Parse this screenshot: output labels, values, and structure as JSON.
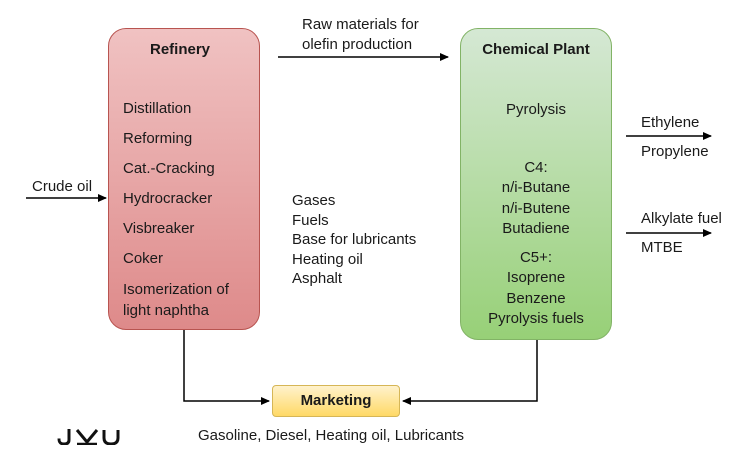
{
  "refinery": {
    "title": "Refinery",
    "processes": [
      "Distillation",
      "Reforming",
      "Cat.-Cracking",
      "Hydrocracker",
      "Visbreaker",
      "Coker",
      "Isomerization of light naphtha"
    ],
    "products": [
      "Gases",
      "Fuels",
      "Base for lubricants",
      "Heating oil",
      "Asphalt"
    ],
    "fill_top": "#f0c2c2",
    "fill_bottom": "#de8a8a",
    "stroke": "#b85450"
  },
  "chemical_plant": {
    "title": "Chemical Plant",
    "pyrolysis": "Pyrolysis",
    "c4": {
      "heading": "C4:",
      "items": [
        "n/i-Butane",
        "n/i-Butene",
        "Butadiene"
      ]
    },
    "c5": {
      "heading": "C5+:",
      "items": [
        "Isoprene",
        "Benzene",
        "Pyrolysis fuels"
      ]
    },
    "fill_top": "#d5e8d4",
    "fill_bottom": "#97d077",
    "stroke": "#82b366"
  },
  "marketing": {
    "title": "Marketing",
    "products": "Gasoline, Diesel, Heating oil, Lubricants",
    "fill_top": "#fff2cc",
    "fill_bottom": "#ffd966",
    "stroke": "#d6b656"
  },
  "flows": {
    "crude_oil": "Crude oil",
    "raw_materials_line1": "Raw materials for",
    "raw_materials_line2": "olefin production",
    "outputs_top": [
      "Ethylene",
      "Propylene"
    ],
    "outputs_bottom": [
      "Alkylate fuel",
      "MTBE"
    ]
  },
  "logo": {
    "text": "JKU",
    "icon": "jku-logo-icon"
  }
}
